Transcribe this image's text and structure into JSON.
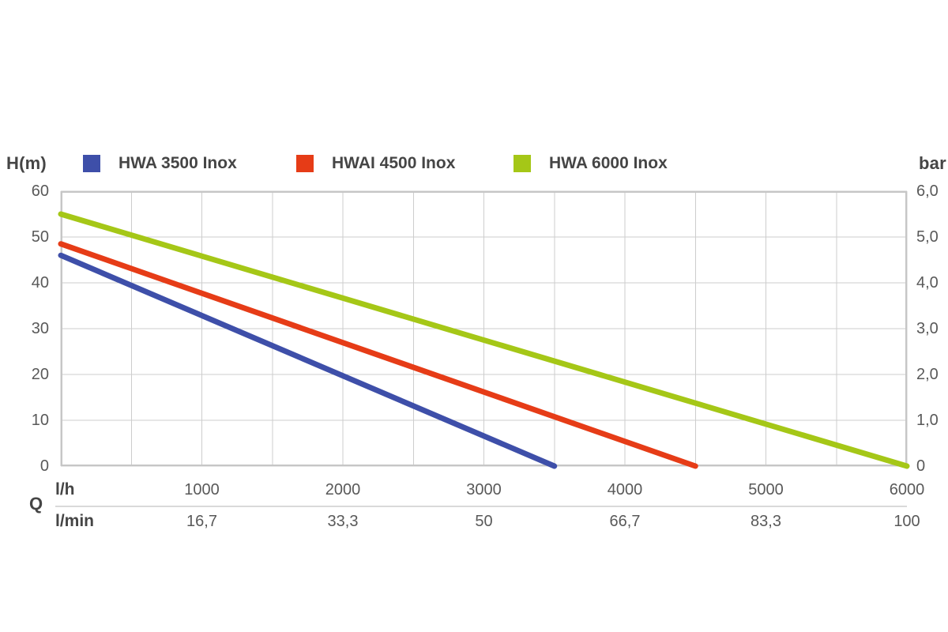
{
  "page": {
    "background": "#ffffff"
  },
  "chart_data": {
    "type": "line",
    "title": "",
    "legend_position": "top",
    "grid": true,
    "y_axis_left": {
      "label": "H(m)",
      "range": [
        0,
        60
      ],
      "gridline_step": 10,
      "ticks": [
        "60",
        "50",
        "40",
        "30",
        "20",
        "10",
        "0"
      ],
      "tick_values": [
        60,
        50,
        40,
        30,
        20,
        10,
        0
      ]
    },
    "y_axis_right": {
      "label": "bar",
      "range": [
        0,
        6
      ],
      "ticks": [
        "6,0",
        "5,0",
        "4,0",
        "3,0",
        "2,0",
        "1,0",
        "0"
      ],
      "tick_values": [
        6,
        5,
        4,
        3,
        2,
        1,
        0
      ]
    },
    "x_axis": {
      "unit_label": "Q",
      "row_top_label": "l/h",
      "row_bottom_label": "l/min",
      "range": [
        0,
        6000
      ],
      "gridline_step": 500,
      "ticks_lh": [
        "1000",
        "2000",
        "3000",
        "4000",
        "5000",
        "6000"
      ],
      "tick_values": [
        1000,
        2000,
        3000,
        4000,
        5000,
        6000
      ],
      "ticks_lmin": [
        "16,7",
        "33,3",
        "50",
        "66,7",
        "83,3",
        "100"
      ]
    },
    "series": [
      {
        "name": "HWA 3500 Inox",
        "color": "#3e4fa9",
        "points": [
          [
            0,
            46
          ],
          [
            3500,
            0
          ]
        ]
      },
      {
        "name": "HWAI 4500 Inox",
        "color": "#e63c17",
        "points": [
          [
            0,
            48.5
          ],
          [
            4500,
            0
          ]
        ]
      },
      {
        "name": "HWA 6000 Inox",
        "color": "#a5c717",
        "points": [
          [
            0,
            55
          ],
          [
            6000,
            0
          ]
        ]
      }
    ],
    "colors": {
      "gridline": "#cdcdcd",
      "plot_border": "#c6c6c6",
      "tick_text": "#595959",
      "label_text": "#454545",
      "divider": "#d9d9d9"
    }
  }
}
